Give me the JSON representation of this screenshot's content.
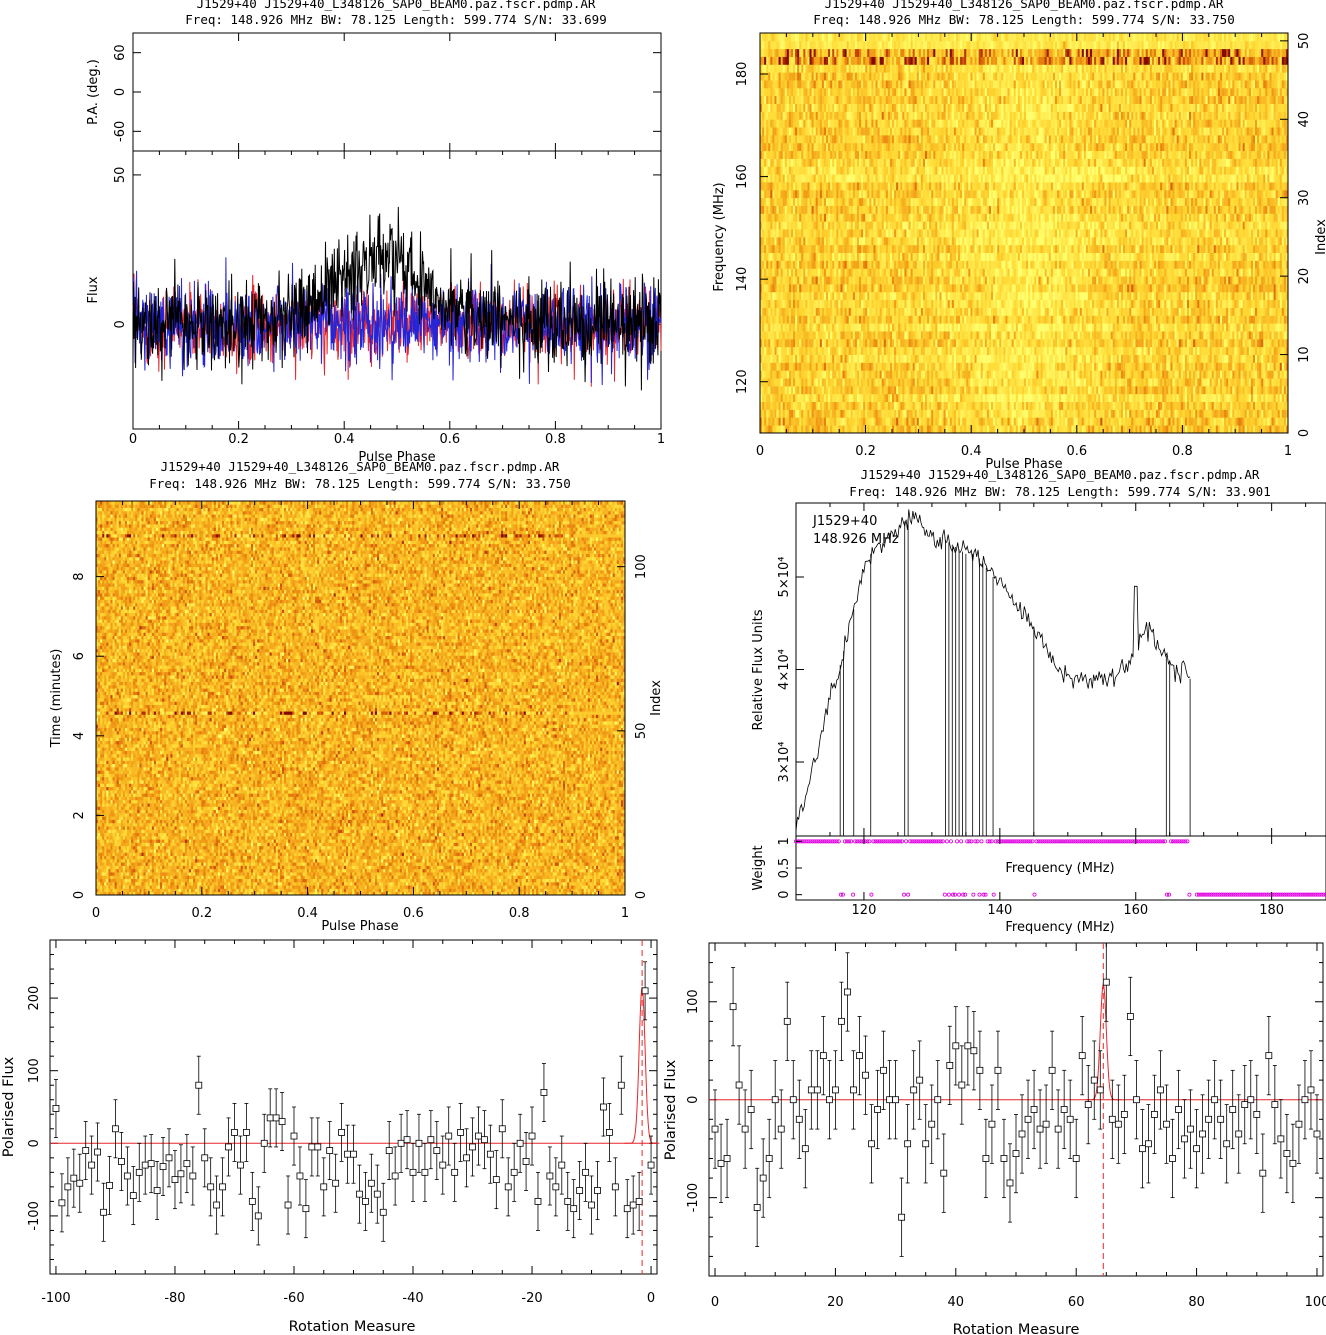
{
  "colors": {
    "axis": "#000000",
    "series_I": "#000000",
    "series_L": "#e8262b",
    "series_V": "#2424d8",
    "weight_marker": "#e000e0",
    "fit_line": "#e8262b",
    "heat_low": "#ffff66",
    "heat_high": "#8a0000"
  },
  "charts": [
    {
      "id": "profile",
      "title": "J1529+40 J1529+40_L348126_SAP0_BEAM0.paz.fscr.pdmp.AR",
      "subtitle": "Freq: 148.926 MHz BW: 78.125 Length: 599.774 S/N: 33.699",
      "xlabel": "Pulse Phase",
      "pa_ylabel": "P.A. (deg.)",
      "flux_ylabel": "Flux"
    },
    {
      "id": "freq-phase",
      "title": "J1529+40 J1529+40_L348126_SAP0_BEAM0.paz.fscr.pdmp.AR",
      "subtitle": "Freq: 148.926 MHz BW: 78.125 Length: 599.774 S/N: 33.750",
      "xlabel": "Pulse Phase",
      "ylabel": "Frequency (MHz)",
      "y2label": "Index"
    },
    {
      "id": "time-phase",
      "title": "J1529+40 J1529+40_L348126_SAP0_BEAM0.paz.fscr.pdmp.AR",
      "subtitle": "Freq: 148.926 MHz BW: 78.125 Length: 599.774 S/N: 33.750",
      "xlabel": "Pulse Phase",
      "ylabel": "Time (minutes)",
      "y2label": "Index"
    },
    {
      "id": "bandpass",
      "title": "J1529+40 J1529+40_L348126_SAP0_BEAM0.paz.fscr.pdmp.AR",
      "subtitle": "Freq: 148.926 MHz BW: 78.125 Length: 599.774 S/N: 33.901",
      "annotation_line1": "J1529+40",
      "annotation_line2": "148.926 MHz",
      "ylabel": "Relative Flux Units",
      "weight_ylabel": "Weight",
      "inner_xlabel": "Frequency (MHz)",
      "xlabel": "Frequency (MHz)"
    },
    {
      "id": "rm-negative",
      "xlabel": "Rotation Measure",
      "ylabel": "Polarised Flux"
    },
    {
      "id": "rm-positive",
      "xlabel": "Rotation Measure",
      "ylabel": "Polarised Flux"
    }
  ],
  "chart_data": [
    {
      "type": "line",
      "panel": "pulse profile with position angle",
      "x_range": [
        0,
        1
      ],
      "xticks": [
        0,
        0.2,
        0.4,
        0.6,
        0.8,
        1
      ],
      "pa_ylim": [
        -90,
        90
      ],
      "pa_yticks": [
        -60,
        0,
        60
      ],
      "flux_ylim": [
        -35,
        58
      ],
      "flux_yticks": [
        0,
        50
      ],
      "series": [
        {
          "name": "I",
          "color": "#000000",
          "baseline": 0,
          "noise_sigma": 7,
          "peak_phase": 0.47,
          "peak_amp": 22,
          "peak_width": 0.09
        },
        {
          "name": "L",
          "color": "#e8262b",
          "baseline": 0,
          "noise_sigma": 6
        },
        {
          "name": "V",
          "color": "#2424d8",
          "baseline": 0,
          "noise_sigma": 7
        }
      ]
    },
    {
      "type": "heatmap",
      "panel": "frequency vs phase",
      "x_range": [
        0,
        1
      ],
      "xticks": [
        0,
        0.2,
        0.4,
        0.6,
        0.8,
        1
      ],
      "y_range": [
        110,
        188
      ],
      "yticks": [
        120,
        140,
        160,
        180
      ],
      "index_range": [
        0,
        50
      ],
      "index_ticks": [
        0,
        10,
        20,
        30,
        40,
        50
      ],
      "n_channels": 51,
      "n_bins": 256,
      "bright_rows_index": [
        44,
        46,
        47,
        48,
        49,
        50
      ]
    },
    {
      "type": "heatmap",
      "panel": "time vs phase",
      "x_range": [
        0,
        1
      ],
      "xticks": [
        0,
        0.2,
        0.4,
        0.6,
        0.8,
        1
      ],
      "y_range": [
        0,
        9.9
      ],
      "yticks": [
        0,
        2,
        4,
        6,
        8
      ],
      "index_range": [
        0,
        119
      ],
      "index_ticks": [
        0,
        50,
        100
      ],
      "n_subints": 120,
      "n_bins": 256,
      "bright_rows_minutes": [
        4.5,
        9.0
      ]
    },
    {
      "type": "line",
      "panel": "bandpass",
      "x_range": [
        110,
        188
      ],
      "xticks": [
        120,
        140,
        160,
        180
      ],
      "y_range": [
        22000,
        58000
      ],
      "yticks": [
        30000,
        40000,
        50000
      ],
      "ytick_labels": [
        "3×10⁴",
        "4×10⁴",
        "5×10⁴"
      ],
      "x": [
        110,
        111,
        112,
        113,
        114,
        115,
        116,
        117,
        118,
        119,
        120,
        121,
        122,
        123,
        124,
        125,
        126,
        127,
        128,
        129,
        130,
        131,
        132,
        133,
        134,
        135,
        136,
        137,
        138,
        139,
        140,
        141,
        142,
        143,
        144,
        145,
        146,
        147,
        148,
        149,
        150,
        151,
        152,
        153,
        154,
        155,
        156,
        157,
        158,
        159,
        160,
        161,
        162,
        163,
        164,
        165,
        166,
        167,
        168
      ],
      "y": [
        23000,
        25000,
        28000,
        31000,
        34000,
        37000,
        39000,
        42000,
        45000,
        48000,
        51000,
        52500,
        53500,
        54000,
        54500,
        55500,
        56000,
        56500,
        56000,
        55000,
        54000,
        53500,
        54000,
        53500,
        53000,
        52500,
        52500,
        52000,
        51000,
        50000,
        49500,
        48500,
        47500,
        46500,
        45500,
        44500,
        43500,
        42000,
        41000,
        40000,
        39500,
        39000,
        39000,
        38800,
        39000,
        39000,
        39200,
        39500,
        40000,
        40500,
        41500,
        43500,
        44000,
        43000,
        42000,
        41000,
        40000,
        39500,
        39000
      ],
      "spikes": [
        {
          "x": 160,
          "y": 49000
        }
      ],
      "flagged_channels_mhz": [
        116.5,
        117,
        118.5,
        121,
        126,
        126.5,
        132,
        132.5,
        133,
        133.5,
        134,
        134.5,
        135,
        136,
        137,
        137.5,
        138,
        139,
        145,
        164.5,
        165,
        168
      ],
      "weight_ylim": [
        -0.1,
        1.1
      ],
      "weight_yticks": [
        0,
        0.5,
        1
      ],
      "weight_good_range_mhz": [
        110,
        168
      ],
      "weight_zero_range_mhz": [
        169,
        188
      ]
    },
    {
      "type": "scatter",
      "panel": "RM synthesis negative",
      "x_range": [
        -101,
        1
      ],
      "xticks": [
        -100,
        -80,
        -60,
        -40,
        -20,
        0
      ],
      "y_range": [
        -180,
        280
      ],
      "yticks": [
        -100,
        0,
        100,
        200
      ],
      "x": [
        -100,
        -99,
        -98,
        -97,
        -96,
        -95,
        -94,
        -93,
        -92,
        -91,
        -90,
        -89,
        -88,
        -87,
        -86,
        -85,
        -84,
        -83,
        -82,
        -81,
        -80,
        -79,
        -78,
        -77,
        -76,
        -75,
        -74,
        -73,
        -72,
        -71,
        -70,
        -69,
        -68,
        -67,
        -66,
        -65,
        -64,
        -63,
        -62,
        -61,
        -60,
        -59,
        -58,
        -57,
        -56,
        -55,
        -54,
        -53,
        -52,
        -51,
        -50,
        -49,
        -48,
        -47,
        -46,
        -45,
        -44,
        -43,
        -42,
        -41,
        -40,
        -39,
        -38,
        -37,
        -36,
        -35,
        -34,
        -33,
        -32,
        -31,
        -30,
        -29,
        -28,
        -27,
        -26,
        -25,
        -24,
        -23,
        -22,
        -21,
        -20,
        -19,
        -18,
        -17,
        -16,
        -15,
        -14,
        -13,
        -12,
        -11,
        -10,
        -9,
        -8,
        -7,
        -6,
        -5,
        -4,
        -3,
        -2,
        -1,
        0
      ],
      "y": [
        48,
        -82,
        -60,
        -48,
        -55,
        -10,
        -30,
        -12,
        -95,
        -58,
        20,
        -25,
        -45,
        -72,
        -40,
        -30,
        -28,
        -65,
        -32,
        -20,
        -50,
        -42,
        -28,
        -45,
        80,
        -20,
        -60,
        -85,
        -60,
        -5,
        15,
        -30,
        15,
        -80,
        -100,
        0,
        35,
        35,
        30,
        -85,
        10,
        -45,
        -90,
        -5,
        -5,
        -60,
        -10,
        -55,
        15,
        -15,
        -15,
        -70,
        -80,
        -55,
        -70,
        -95,
        -10,
        -45,
        0,
        5,
        -40,
        0,
        -40,
        5,
        -10,
        -30,
        10,
        -40,
        15,
        -20,
        -5,
        10,
        5,
        -15,
        -50,
        20,
        -60,
        -40,
        0,
        -25,
        10,
        -80,
        70,
        -45,
        -60,
        -30,
        -80,
        -90,
        -65,
        -40,
        -85,
        -65,
        50,
        15,
        -60,
        80,
        -90,
        -85,
        -80,
        210,
        -30
      ],
      "errors": 40,
      "fit_baseline": 0,
      "peak_rm": -1.5,
      "peak_flux": 215
    },
    {
      "type": "scatter",
      "panel": "RM synthesis positive",
      "x_range": [
        -1,
        101
      ],
      "xticks": [
        0,
        20,
        40,
        60,
        80,
        100
      ],
      "y_range": [
        -180,
        160
      ],
      "yticks": [
        -100,
        0,
        100
      ],
      "x": [
        0,
        1,
        2,
        3,
        4,
        5,
        6,
        7,
        8,
        9,
        10,
        11,
        12,
        13,
        14,
        15,
        16,
        17,
        18,
        19,
        20,
        21,
        22,
        23,
        24,
        25,
        26,
        27,
        28,
        29,
        30,
        31,
        32,
        33,
        34,
        35,
        36,
        37,
        38,
        39,
        40,
        41,
        42,
        43,
        44,
        45,
        46,
        47,
        48,
        49,
        50,
        51,
        52,
        53,
        54,
        55,
        56,
        57,
        58,
        59,
        60,
        61,
        62,
        63,
        64,
        65,
        66,
        67,
        68,
        69,
        70,
        71,
        72,
        73,
        74,
        75,
        76,
        77,
        78,
        79,
        80,
        81,
        82,
        83,
        84,
        85,
        86,
        87,
        88,
        89,
        90,
        91,
        92,
        93,
        94,
        95,
        96,
        97,
        98,
        99,
        100
      ],
      "y": [
        -30,
        -65,
        -60,
        95,
        15,
        -30,
        -10,
        -110,
        -80,
        -60,
        0,
        -30,
        80,
        0,
        -20,
        -50,
        10,
        10,
        45,
        0,
        10,
        80,
        110,
        10,
        45,
        25,
        -45,
        -10,
        30,
        0,
        0,
        -120,
        -45,
        10,
        20,
        -45,
        -25,
        0,
        -75,
        35,
        55,
        15,
        55,
        50,
        30,
        -60,
        -25,
        30,
        -60,
        -85,
        -55,
        -35,
        -20,
        -10,
        -30,
        -25,
        30,
        -30,
        -10,
        -20,
        -60,
        45,
        -5,
        20,
        10,
        120,
        -20,
        -25,
        -15,
        85,
        0,
        -50,
        -45,
        -15,
        10,
        -25,
        -60,
        -10,
        -40,
        -30,
        -50,
        -35,
        -20,
        0,
        -20,
        -45,
        -10,
        -35,
        -5,
        0,
        -15,
        -75,
        45,
        -5,
        -40,
        -55,
        -65,
        -25,
        0,
        10,
        -35
      ],
      "errors": 40,
      "fit_baseline": 0,
      "peak_rm": 64.5,
      "peak_flux": 118
    }
  ]
}
